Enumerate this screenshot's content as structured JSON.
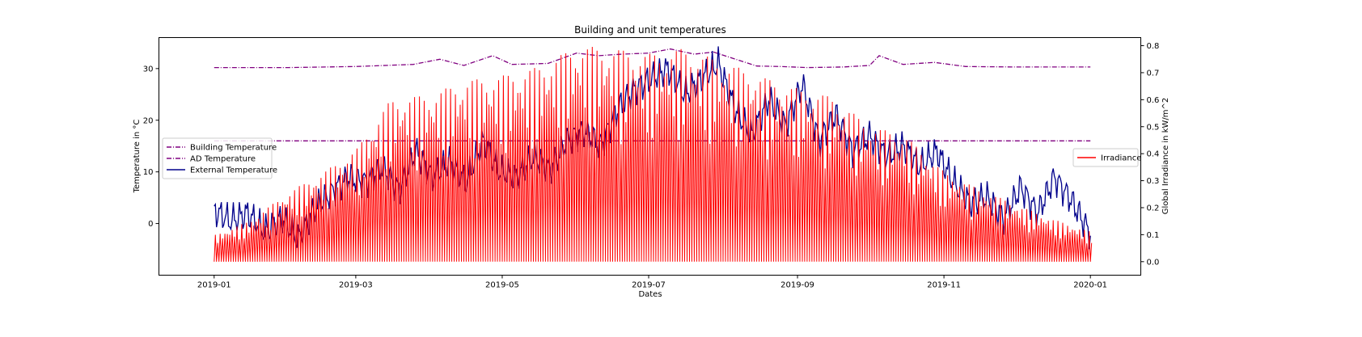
{
  "chart_data": {
    "type": "line",
    "title": "Building and unit temperatures",
    "xlabel": "Dates",
    "ylabel": "Temperature in °C",
    "ylabel_right": "Global Irradiance in kW/m^2",
    "xlim": [
      "2018-12-09",
      "2020-01-22"
    ],
    "ylim": [
      -10,
      36
    ],
    "ylim_right": [
      -0.05,
      0.83
    ],
    "x_ticks": [
      "2019-01",
      "2019-03",
      "2019-05",
      "2019-07",
      "2019-09",
      "2019-11",
      "2020-01"
    ],
    "y_ticks": [
      0,
      10,
      20,
      30
    ],
    "y_ticks_right": [
      0.0,
      0.1,
      0.2,
      0.3,
      0.4,
      0.5,
      0.6,
      0.7,
      0.8
    ],
    "legend_left_position": "center-left",
    "legend_right_position": "center-right",
    "grid": false,
    "series": [
      {
        "name": "Building Temperature",
        "axis": "left",
        "style": "dash-dot",
        "color": "#800080",
        "x": [
          "2019-01-01",
          "2019-03-01",
          "2019-05-01",
          "2019-07-01",
          "2019-09-01",
          "2019-11-01",
          "2020-01-01"
        ],
        "y": [
          16,
          16,
          16,
          16,
          16,
          16,
          16
        ]
      },
      {
        "name": "AD Temperature",
        "axis": "left",
        "style": "dash-dot",
        "color": "#800080",
        "x": [
          "2019-01-01",
          "2019-02-01",
          "2019-03-01",
          "2019-03-25",
          "2019-04-05",
          "2019-04-15",
          "2019-04-27",
          "2019-05-05",
          "2019-05-20",
          "2019-06-01",
          "2019-06-10",
          "2019-06-20",
          "2019-07-01",
          "2019-07-10",
          "2019-07-20",
          "2019-07-28",
          "2019-08-05",
          "2019-08-15",
          "2019-08-25",
          "2019-09-05",
          "2019-09-20",
          "2019-10-01",
          "2019-10-05",
          "2019-10-15",
          "2019-10-28",
          "2019-11-10",
          "2019-12-01",
          "2020-01-01"
        ],
        "y": [
          30.2,
          30.2,
          30.4,
          30.8,
          31.8,
          30.6,
          32.5,
          30.8,
          31.0,
          33.0,
          32.5,
          32.8,
          33.0,
          33.8,
          32.8,
          33.2,
          32.0,
          30.5,
          30.4,
          30.2,
          30.3,
          30.6,
          32.5,
          30.8,
          31.2,
          30.4,
          30.3,
          30.3
        ]
      },
      {
        "name": "External Temperature",
        "axis": "left",
        "style": "solid",
        "color": "#00008b",
        "x": [
          "2019-01-01",
          "2019-01-08",
          "2019-01-15",
          "2019-01-22",
          "2019-01-29",
          "2019-02-05",
          "2019-02-12",
          "2019-02-19",
          "2019-02-26",
          "2019-03-05",
          "2019-03-12",
          "2019-03-19",
          "2019-03-26",
          "2019-04-02",
          "2019-04-09",
          "2019-04-16",
          "2019-04-23",
          "2019-04-30",
          "2019-05-07",
          "2019-05-14",
          "2019-05-21",
          "2019-05-28",
          "2019-06-04",
          "2019-06-11",
          "2019-06-18",
          "2019-06-25",
          "2019-07-02",
          "2019-07-09",
          "2019-07-16",
          "2019-07-23",
          "2019-07-30",
          "2019-08-06",
          "2019-08-13",
          "2019-08-20",
          "2019-08-27",
          "2019-09-03",
          "2019-09-10",
          "2019-09-17",
          "2019-09-24",
          "2019-10-01",
          "2019-10-08",
          "2019-10-15",
          "2019-10-22",
          "2019-10-29",
          "2019-11-05",
          "2019-11-12",
          "2019-11-19",
          "2019-11-26",
          "2019-12-03",
          "2019-12-10",
          "2019-12-17",
          "2019-12-24",
          "2020-01-01"
        ],
        "y": [
          2.5,
          0.5,
          2.0,
          -1.5,
          1.0,
          -3.0,
          3.0,
          6.0,
          9.0,
          8.0,
          11.0,
          6.5,
          14.0,
          9.0,
          12.0,
          8.0,
          16.0,
          10.0,
          9.0,
          13.0,
          10.5,
          16.0,
          18.0,
          15.0,
          22.0,
          26.0,
          28.0,
          30.0,
          25.0,
          28.0,
          31.0,
          22.0,
          17.0,
          24.0,
          19.0,
          27.0,
          16.0,
          21.0,
          14.0,
          17.0,
          13.0,
          15.0,
          11.0,
          14.0,
          8.0,
          4.0,
          5.0,
          1.0,
          7.0,
          2.0,
          9.0,
          4.5,
          -2.0
        ]
      },
      {
        "name": "Irradiance",
        "axis": "right",
        "style": "solid",
        "color": "#ff0000",
        "note_peaks_by_week": true,
        "x": [
          "2019-01-01",
          "2019-01-15",
          "2019-02-01",
          "2019-02-15",
          "2019-03-01",
          "2019-03-15",
          "2019-04-01",
          "2019-04-15",
          "2019-05-01",
          "2019-05-15",
          "2019-06-01",
          "2019-06-15",
          "2019-07-01",
          "2019-07-15",
          "2019-08-01",
          "2019-08-15",
          "2019-09-01",
          "2019-09-15",
          "2019-10-01",
          "2019-10-15",
          "2019-11-01",
          "2019-11-15",
          "2019-12-01",
          "2019-12-15",
          "2020-01-01"
        ],
        "y": [
          0.1,
          0.15,
          0.26,
          0.33,
          0.42,
          0.6,
          0.62,
          0.67,
          0.69,
          0.72,
          0.8,
          0.79,
          0.77,
          0.79,
          0.74,
          0.69,
          0.64,
          0.61,
          0.5,
          0.47,
          0.33,
          0.27,
          0.21,
          0.16,
          0.11
        ]
      }
    ]
  }
}
